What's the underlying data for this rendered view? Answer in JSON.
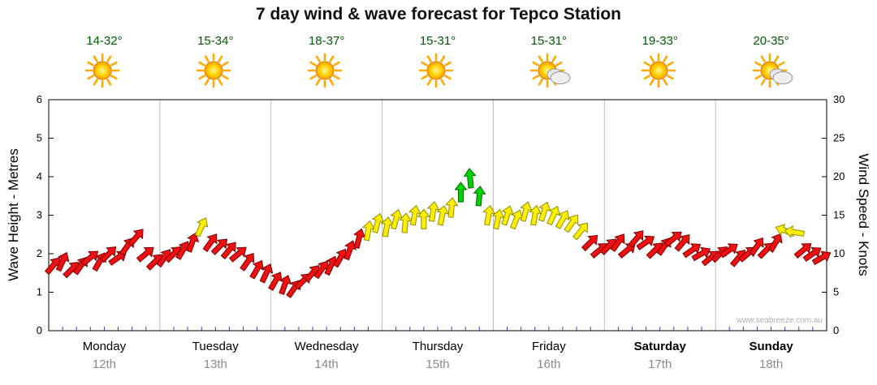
{
  "title": "7 day wind & wave forecast for Tepco Station",
  "watermark": "www.seabreeze.com.au",
  "left_axis": {
    "label": "Wave Height - Metres",
    "min": 0,
    "max": 6,
    "ticks": [
      0,
      1,
      2,
      3,
      4,
      5,
      6
    ]
  },
  "right_axis": {
    "label": "Wind Speed - Knots",
    "min": 0,
    "max": 30,
    "ticks": [
      0,
      5,
      10,
      15,
      20,
      25,
      30
    ]
  },
  "days": [
    {
      "name": "Monday",
      "date": "12th",
      "temp": "14-32°",
      "icon": "sunny",
      "bold": false
    },
    {
      "name": "Tuesday",
      "date": "13th",
      "temp": "15-34°",
      "icon": "sunny",
      "bold": false
    },
    {
      "name": "Wednesday",
      "date": "14th",
      "temp": "18-37°",
      "icon": "sunny",
      "bold": false
    },
    {
      "name": "Thursday",
      "date": "15th",
      "temp": "15-31°",
      "icon": "sunny",
      "bold": false
    },
    {
      "name": "Friday",
      "date": "16th",
      "temp": "15-31°",
      "icon": "partly-cloudy",
      "bold": false
    },
    {
      "name": "Saturday",
      "date": "17th",
      "temp": "19-33°",
      "icon": "sunny",
      "bold": true
    },
    {
      "name": "Sunday",
      "date": "18th",
      "temp": "20-35°",
      "icon": "partly-cloudy",
      "bold": true
    }
  ],
  "chart_data": {
    "type": "wind-arrows",
    "x_unit": "7 days, 12 samples per day",
    "speed_axis": "knots (right axis); wave metres = knots / 5 (left axis)",
    "speeds_knots": [
      8.5,
      9,
      8,
      8.5,
      9.5,
      9,
      10,
      9.5,
      11,
      12.2,
      10,
      9,
      9.5,
      10,
      10.5,
      11.5,
      13.5,
      11.5,
      11,
      10.5,
      10,
      9,
      8,
      7.5,
      6.5,
      6,
      5.5,
      6.5,
      7.5,
      8,
      8.5,
      9.5,
      10.5,
      12,
      13,
      14,
      13.5,
      14.5,
      14,
      15,
      14.5,
      15.5,
      15,
      16,
      18,
      19.8,
      17.5,
      15,
      14.5,
      15,
      14.5,
      15.5,
      15,
      15.5,
      15,
      14.5,
      14,
      13,
      11.5,
      10.5,
      11,
      11.5,
      10.5,
      12,
      11.5,
      10.5,
      11,
      12,
      11.5,
      10.5,
      10,
      9.5,
      10,
      10.5,
      9.5,
      10,
      11,
      10.5,
      11.5,
      13,
      12.8,
      10.5,
      10,
      9.5
    ],
    "directions_deg": [
      40,
      25,
      45,
      35,
      50,
      30,
      45,
      55,
      35,
      40,
      50,
      45,
      35,
      45,
      30,
      20,
      25,
      35,
      45,
      40,
      50,
      35,
      30,
      25,
      30,
      20,
      35,
      45,
      40,
      35,
      25,
      30,
      20,
      15,
      10,
      15,
      10,
      15,
      5,
      10,
      0,
      8,
      12,
      5,
      0,
      -5,
      5,
      10,
      12,
      18,
      22,
      15,
      10,
      18,
      25,
      30,
      35,
      40,
      45,
      50,
      45,
      35,
      50,
      40,
      55,
      45,
      35,
      50,
      40,
      55,
      60,
      50,
      45,
      55,
      40,
      50,
      35,
      45,
      30,
      -70,
      -80,
      50,
      55,
      60
    ],
    "color_thresholds": {
      "red_below": 12.5,
      "yellow_below": 17
    },
    "colors": {
      "red": {
        "fill": "#ee1111",
        "stroke": "#7a0000"
      },
      "yellow": {
        "fill": "#ffee00",
        "stroke": "#8f8f00"
      },
      "green": {
        "fill": "#00d400",
        "stroke": "#006600"
      }
    },
    "grid_color": "#bbbbbb",
    "minor_tick_color": "#3344bb"
  }
}
